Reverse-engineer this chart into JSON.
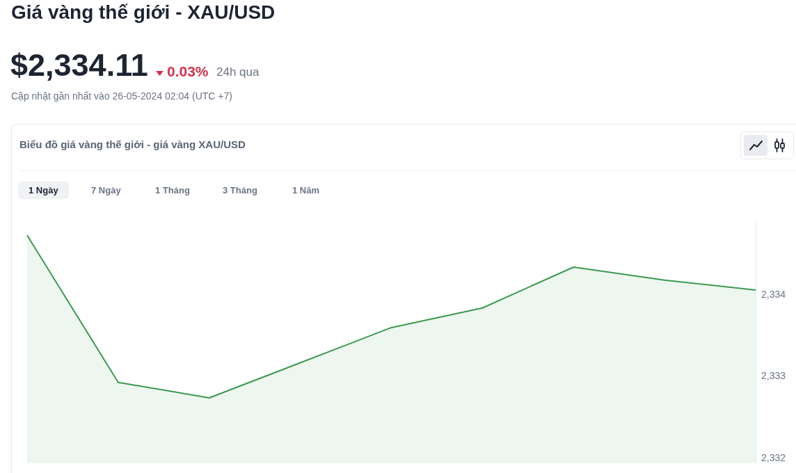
{
  "chart_data": {
    "type": "area",
    "title": "Giá vàng thế giới - XAU/USD",
    "subtitle": "Biểu đồ giá vàng thế giới - giá vàng XAU/USD",
    "annotations": [
      "$2,334.11",
      "0.03%",
      "24h qua",
      "Cập nhật gần nhất vào 26-05-2024 02:04 (UTC +7)",
      "1 Ngày",
      "7 Ngày",
      "1 Tháng",
      "3 Tháng",
      "1 Năm"
    ],
    "categories": [
      null,
      null,
      null,
      null,
      null,
      null,
      null,
      null,
      null
    ],
    "values": [
      2334.72,
      2332.92,
      2332.73,
      2333.16,
      2333.59,
      2333.83,
      2334.33,
      2334.17,
      2334.05
    ],
    "color": "#3a9a4f",
    "ylim": [
      2331.93,
      2334.9
    ],
    "yticks": [
      {
        "value": 2332,
        "label": "2,332"
      },
      {
        "value": 2333,
        "label": "2,333"
      },
      {
        "value": 2334,
        "label": "2,334"
      }
    ],
    "grid": false,
    "tick_labels": "y",
    "marker": "none"
  }
}
